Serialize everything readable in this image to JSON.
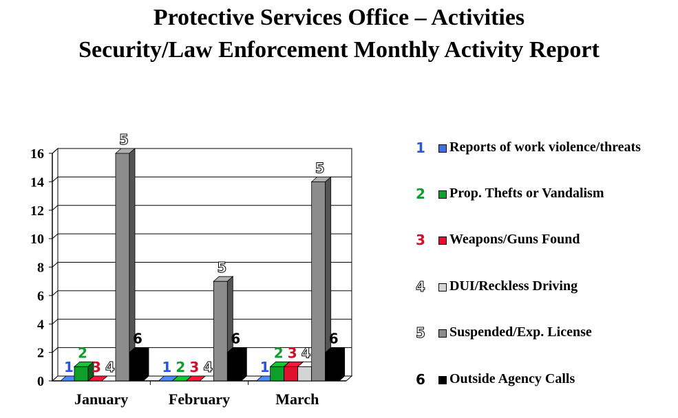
{
  "title_line1": "Protective Services Office – Activities",
  "title_line2": "Security/Law Enforcement Monthly Activity Report",
  "chart_data": {
    "type": "bar",
    "categories": [
      "January",
      "February",
      "March"
    ],
    "ylim": [
      0,
      16
    ],
    "yticks": [
      0,
      2,
      4,
      6,
      8,
      10,
      12,
      14,
      16
    ],
    "grid": true,
    "legend_placement": "right",
    "series": [
      {
        "name": "Reports of work violence/threats",
        "number_label": "1",
        "color": "#3d6fe0",
        "label_color": "#2a56d8",
        "values": [
          0,
          0,
          0
        ]
      },
      {
        "name": "Prop. Thefts or Vandalism",
        "number_label": "2",
        "color": "#0e9e2a",
        "label_color": "#0e9e2a",
        "values": [
          1,
          0,
          1
        ]
      },
      {
        "name": "Weapons/Guns Found",
        "number_label": "3",
        "color": "#e0102e",
        "label_color": "#d0102a",
        "values": [
          0,
          0,
          1
        ]
      },
      {
        "name": "DUI/Reckless Driving",
        "number_label": "4",
        "color": "#d4d4d4",
        "label_color": "#ffffff",
        "values": [
          0,
          0,
          1
        ]
      },
      {
        "name": "Suspended/Exp. License",
        "number_label": "5",
        "color": "#8c8c8c",
        "label_color": "#ffffff",
        "values": [
          16,
          7,
          14
        ]
      },
      {
        "name": "Outside Agency Calls",
        "number_label": "6",
        "color": "#000000",
        "label_color": "#000000",
        "values": [
          2,
          2,
          2
        ]
      }
    ]
  }
}
